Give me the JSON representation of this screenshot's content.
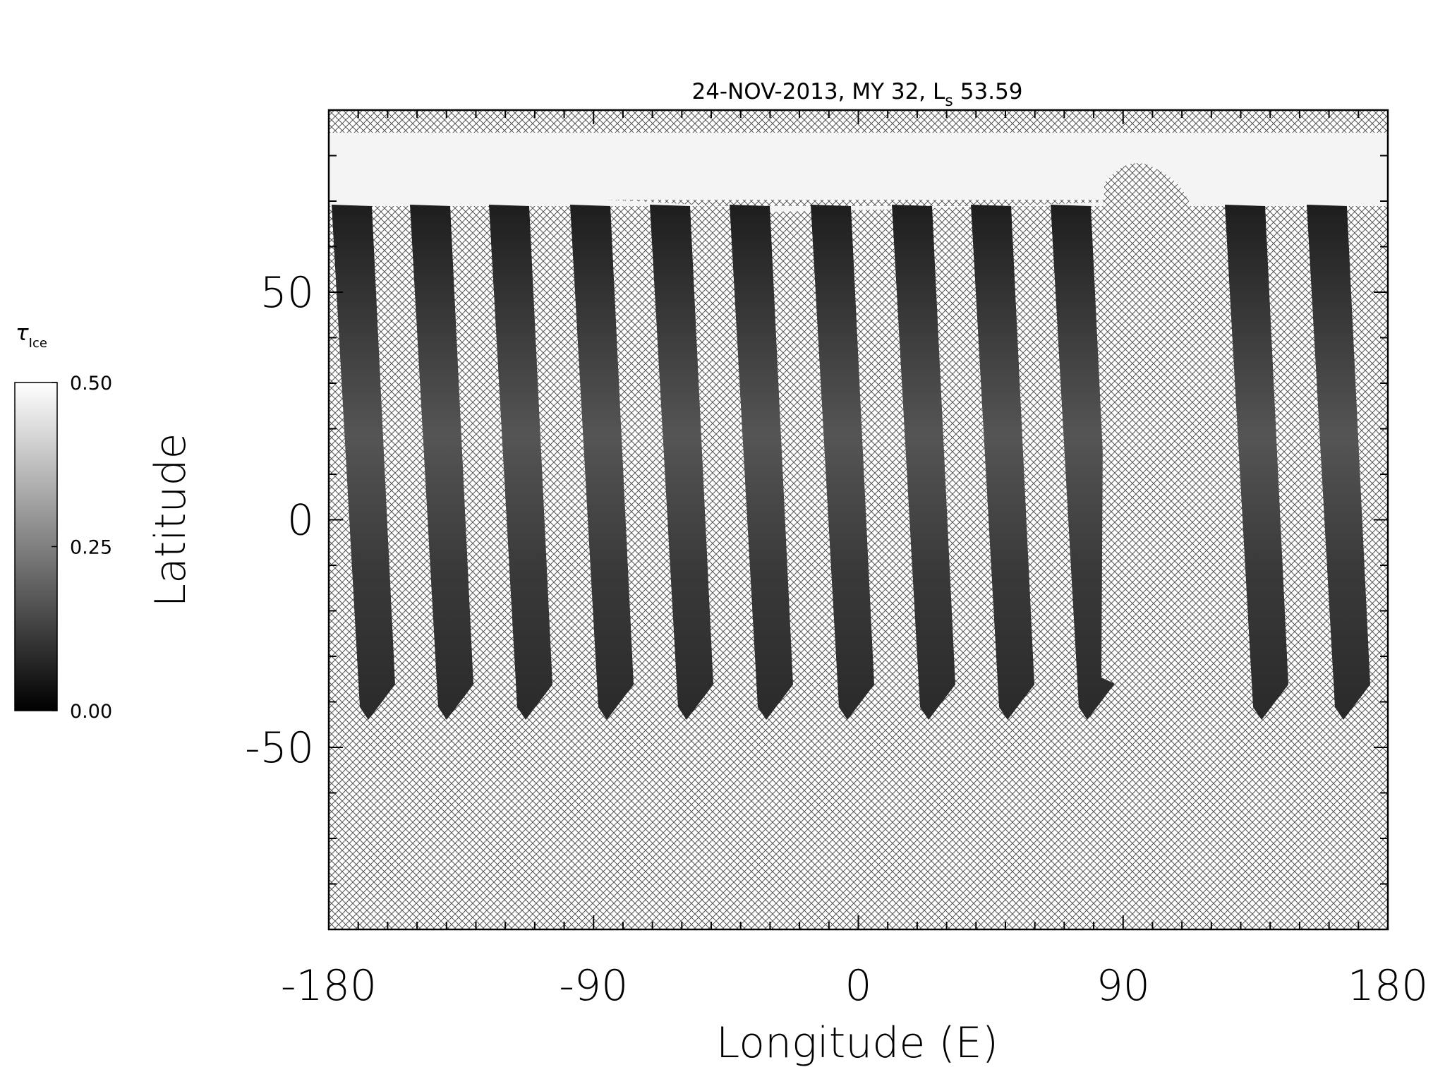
{
  "chart_data": {
    "type": "map",
    "title": "24-NOV-2013, MY 32,  L",
    "title_subscript": "s",
    "ls": 53.59,
    "xlabel": "Longitude (E)",
    "ylabel": "Latitude",
    "xlim": [
      -180,
      180
    ],
    "xticks": [
      -180,
      -90,
      0,
      90,
      180
    ],
    "xminorticks": [
      -170,
      -160,
      -150,
      -140,
      -130,
      -120,
      -110,
      -100,
      -80,
      -70,
      -60,
      -50,
      -40,
      -30,
      -20,
      -10,
      10,
      20,
      30,
      40,
      50,
      60,
      70,
      80,
      100,
      110,
      120,
      130,
      140,
      150,
      160,
      170
    ],
    "ylim": [
      -90,
      90
    ],
    "yticks": [
      -50,
      0,
      50
    ],
    "yminorticks": [
      -80,
      -70,
      -60,
      -40,
      -30,
      -20,
      -10,
      10,
      20,
      30,
      40,
      60,
      70,
      80
    ],
    "colorbar": {
      "label": "τ",
      "label_subscript": "Ice",
      "lim": [
        0,
        0.5
      ],
      "ticks": [
        {
          "value": 0,
          "label": "0.00"
        },
        {
          "value": 0.25,
          "label": "0.25"
        },
        {
          "value": 0.5,
          "label": "0.50"
        }
      ],
      "colors": [
        "#000000",
        "#ffffff"
      ]
    }
  }
}
